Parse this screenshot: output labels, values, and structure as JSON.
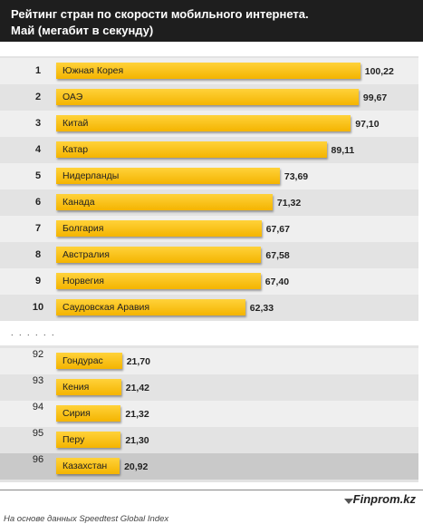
{
  "header": {
    "title_line1": "Рейтинг стран по скорости мобильного интернета.",
    "title_line2": "Май (мегабит в секунду)"
  },
  "chart_data": {
    "type": "bar",
    "orientation": "horizontal",
    "title": "Рейтинг стран по скорости мобильного интернета. Май (мегабит в секунду)",
    "top_group": {
      "ranks": [
        "1",
        "2",
        "3",
        "4",
        "5",
        "6",
        "7",
        "8",
        "9",
        "10"
      ],
      "categories": [
        "Южная Корея",
        "ОАЭ",
        "Китай",
        "Катар",
        "Нидерланды",
        "Канада",
        "Болгария",
        "Австралия",
        "Норвегия",
        "Саудовская Аравия"
      ],
      "values": [
        100.22,
        99.67,
        97.1,
        89.11,
        73.69,
        71.32,
        67.67,
        67.58,
        67.4,
        62.33
      ],
      "value_labels": [
        "100,22",
        "99,67",
        "97,10",
        "89,11",
        "73,69",
        "71,32",
        "67,67",
        "67,58",
        "67,40",
        "62,33"
      ]
    },
    "bottom_group": {
      "ranks": [
        "92",
        "93",
        "94",
        "95",
        "96"
      ],
      "categories": [
        "Гондурас",
        "Кения",
        "Сирия",
        "Перу",
        "Казахстан"
      ],
      "values": [
        21.7,
        21.42,
        21.32,
        21.3,
        20.92
      ],
      "value_labels": [
        "21,70",
        "21,42",
        "21,32",
        "21,30",
        "20,92"
      ]
    },
    "separator": ". . . . . .",
    "highlight_category": "Казахстан"
  },
  "footer": {
    "brand": "Finprom.kz",
    "source": "На основе данных Speedtest Global Index"
  },
  "colors": {
    "bar": "#f4b400",
    "header_bg": "#1e1e1e",
    "highlight_row": "#c9c9c9"
  }
}
